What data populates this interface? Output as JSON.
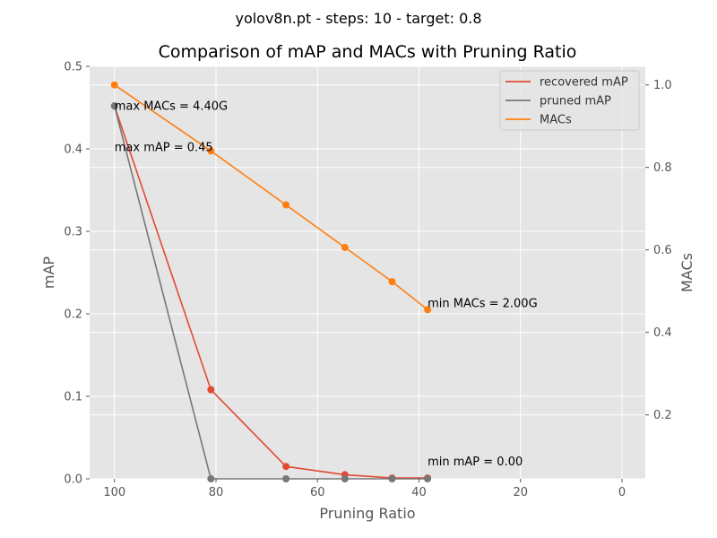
{
  "chart_data": {
    "type": "line",
    "suptitle": "yolov8n.pt - steps: 10 - target: 0.8",
    "title": "Comparison of mAP and MACs with Pruning Ratio",
    "xlabel": "Pruning Ratio",
    "ylabel_left": "mAP",
    "ylabel_right": "MACs",
    "x_inverted": true,
    "xlim": [
      104.9,
      -4.6
    ],
    "ylim_left": [
      0,
      0.5
    ],
    "ylim_right": [
      0.045,
      1.045
    ],
    "xticks": [
      100,
      80,
      60,
      40,
      20,
      0
    ],
    "yticks_left": [
      "0.0",
      "0.1",
      "0.2",
      "0.3",
      "0.4",
      "0.5"
    ],
    "yticks_right": [
      "0.2",
      "0.4",
      "0.6",
      "0.8",
      "1.0"
    ],
    "grid": true,
    "legend_position": "top-right",
    "x": [
      100,
      81.0,
      66.2,
      54.6,
      45.3,
      38.3
    ],
    "series": [
      {
        "name": "recovered mAP",
        "axis": "left",
        "color": "#E24A33",
        "values": [
          0.452,
          0.108,
          0.015,
          0.005,
          0.001,
          0.001
        ]
      },
      {
        "name": "pruned mAP",
        "axis": "left",
        "color": "#777777",
        "values": [
          0.452,
          0.0,
          0.0,
          0.0,
          0.0,
          0.0
        ]
      },
      {
        "name": "MACs",
        "axis": "right",
        "color": "#FF7F0E",
        "values": [
          1.0,
          0.84,
          0.709,
          0.606,
          0.523,
          0.455
        ]
      }
    ],
    "annotations": [
      {
        "text": "max MACs = 4.40G",
        "x": 100,
        "y": 0.452,
        "axis": "left"
      },
      {
        "text": "max mAP = 0.45",
        "x": 100,
        "y": 0.402,
        "axis": "left"
      },
      {
        "text": "min MACs = 2.00G",
        "x": 38.3,
        "y": 0.213,
        "axis": "left"
      },
      {
        "text": "min mAP = 0.00",
        "x": 38.3,
        "y": 0.021,
        "axis": "left"
      }
    ]
  }
}
